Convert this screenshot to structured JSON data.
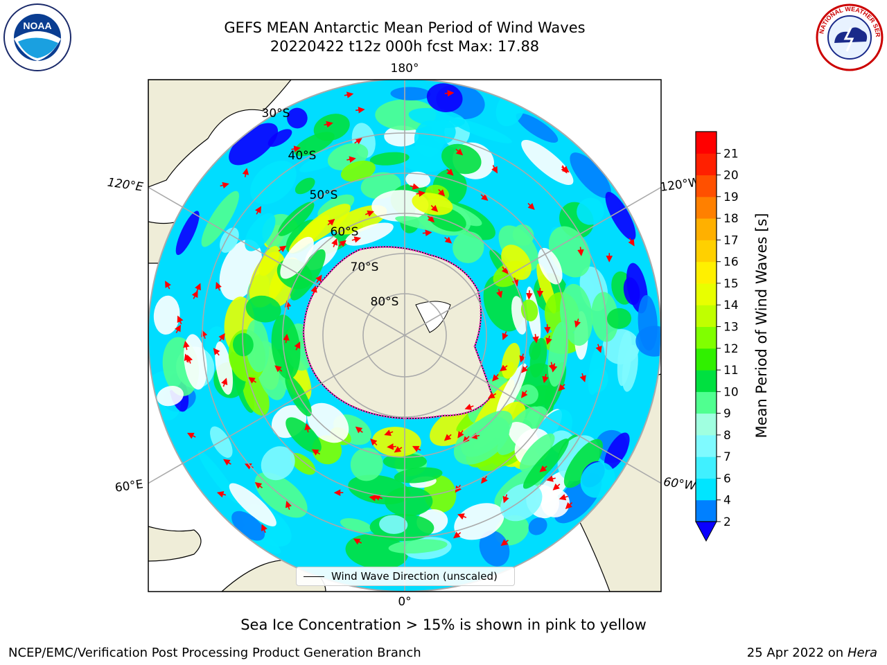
{
  "title": {
    "line1": "GEFS MEAN Antarctic Mean Period of Wind Waves",
    "line2": "20220422 t12z 000h fcst   Max: 17.88"
  },
  "logos": {
    "left": "noaa-logo",
    "right": "nws-logo",
    "left_text": "NOAA",
    "right_text": "NATIONAL WEATHER SERVICE"
  },
  "map": {
    "projection": "south-polar-stereographic",
    "longitude_labels": {
      "top": "180°",
      "bottom": "0°",
      "upper_left": "120°E",
      "upper_right": "120°W",
      "lower_left": "60°E",
      "lower_right": "60°W"
    },
    "latitude_labels": [
      "30°S",
      "40°S",
      "50°S",
      "60°S",
      "70°S",
      "80°S"
    ],
    "legend": "Wind Wave Direction (unscaled)",
    "colors": {
      "land": "#efedd8",
      "ice_edge": "#ff33cc",
      "arrow": "#ff0000",
      "grid": "#aaaaaa"
    }
  },
  "colorbar": {
    "label": "Mean Period of Wind Waves [s]",
    "ticks": [
      "2",
      "4",
      "6",
      "7",
      "8",
      "9",
      "10",
      "11",
      "12",
      "13",
      "14",
      "15",
      "16",
      "17",
      "18",
      "19",
      "20",
      "21"
    ],
    "colors": [
      "#0a00ff",
      "#0080ff",
      "#00e5ff",
      "#40f0ff",
      "#7ffaff",
      "#a0ffe0",
      "#50ff90",
      "#00e040",
      "#30f000",
      "#80ff00",
      "#c0ff00",
      "#e8ff00",
      "#fff000",
      "#ffd000",
      "#ffb000",
      "#ff8000",
      "#ff5000",
      "#ff2000",
      "#ff0000"
    ],
    "extend": "min"
  },
  "footnote": "Sea Ice Concentration > 15% is shown in pink to yellow",
  "credit": "NCEP/EMC/Verification Post Processing Product Generation Branch",
  "stamp": {
    "date": "25 Apr 2022 on ",
    "machine": "Hera"
  }
}
